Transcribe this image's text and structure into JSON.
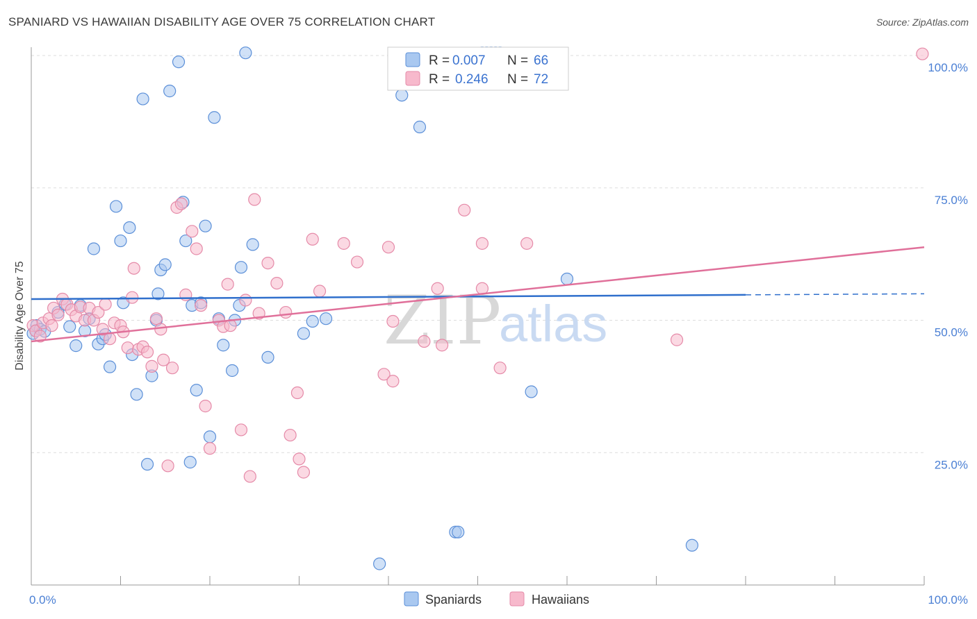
{
  "header": {
    "title": "SPANIARD VS HAWAIIAN DISABILITY AGE OVER 75 CORRELATION CHART",
    "source": "Source: ZipAtlas.com"
  },
  "watermark": {
    "zip": "ZIP",
    "atlas": "atlas"
  },
  "colors": {
    "spaniards_fill": "#a9c8f0",
    "spaniards_stroke": "#5b8fd8",
    "spaniards_line": "#2f6fcc",
    "hawaiians_fill": "#f7b9cc",
    "hawaiians_stroke": "#e58aa8",
    "hawaiians_line": "#e0709a",
    "tick_label": "#4a7fd4",
    "grid": "#dddddd"
  },
  "legend": {
    "rows": [
      {
        "r_label": "R =",
        "r_value": "0.007",
        "n_label": "N =",
        "n_value": "66"
      },
      {
        "r_label": "R =",
        "r_value": "0.246",
        "n_label": "N =",
        "n_value": "72"
      }
    ]
  },
  "chart_data": {
    "type": "scatter",
    "title": "SPANIARD VS HAWAIIAN DISABILITY AGE OVER 75 CORRELATION CHART",
    "xlabel": "",
    "ylabel": "Disability Age Over 75",
    "xlim": [
      0,
      100
    ],
    "ylim": [
      0,
      100
    ],
    "x_tick_labels": [
      "0.0%",
      "100.0%"
    ],
    "y_ticks": [
      25,
      50,
      75,
      100
    ],
    "y_tick_labels": [
      "25.0%",
      "50.0%",
      "75.0%",
      "100.0%"
    ],
    "grid": true,
    "legend_labels": [
      "Spaniards",
      "Hawaiians"
    ],
    "series": [
      {
        "name": "Spaniards",
        "trend": {
          "x0": 0,
          "y0": 54.0,
          "x1": 80,
          "y1": 54.8,
          "dashed_to_x": 100,
          "dashed_to_y": 55.0
        },
        "points": [
          [
            0.2,
            47.5
          ],
          [
            0.5,
            48.0
          ],
          [
            0.6,
            49.0
          ],
          [
            1.0,
            48.3
          ],
          [
            1.5,
            47.9
          ],
          [
            3.0,
            51.5
          ],
          [
            3.8,
            53.0
          ],
          [
            4.3,
            48.8
          ],
          [
            5.0,
            45.2
          ],
          [
            5.5,
            52.8
          ],
          [
            6.0,
            48.0
          ],
          [
            6.5,
            50.3
          ],
          [
            7.0,
            63.5
          ],
          [
            7.5,
            45.5
          ],
          [
            8.0,
            46.5
          ],
          [
            8.3,
            47.3
          ],
          [
            8.8,
            41.2
          ],
          [
            9.5,
            71.5
          ],
          [
            10.0,
            65.0
          ],
          [
            10.3,
            53.3
          ],
          [
            11.0,
            67.5
          ],
          [
            11.3,
            43.5
          ],
          [
            11.8,
            36.0
          ],
          [
            12.5,
            91.8
          ],
          [
            13.0,
            22.8
          ],
          [
            13.5,
            39.5
          ],
          [
            14.0,
            50.0
          ],
          [
            14.2,
            55.0
          ],
          [
            14.5,
            59.5
          ],
          [
            15.0,
            60.5
          ],
          [
            15.5,
            93.3
          ],
          [
            16.5,
            98.8
          ],
          [
            17.0,
            72.3
          ],
          [
            17.3,
            65.0
          ],
          [
            17.8,
            23.2
          ],
          [
            18.0,
            52.8
          ],
          [
            18.5,
            36.8
          ],
          [
            19.0,
            53.3
          ],
          [
            19.5,
            67.8
          ],
          [
            20.0,
            28.0
          ],
          [
            20.5,
            88.3
          ],
          [
            21.0,
            50.3
          ],
          [
            21.5,
            45.3
          ],
          [
            22.5,
            40.5
          ],
          [
            22.8,
            50.0
          ],
          [
            23.3,
            52.8
          ],
          [
            23.5,
            60.0
          ],
          [
            24.0,
            100.5
          ],
          [
            24.8,
            64.3
          ],
          [
            26.5,
            43.0
          ],
          [
            30.5,
            47.5
          ],
          [
            31.5,
            49.8
          ],
          [
            33.0,
            50.3
          ],
          [
            39.0,
            4.0
          ],
          [
            41.5,
            92.5
          ],
          [
            43.5,
            86.5
          ],
          [
            47.5,
            10.0
          ],
          [
            47.8,
            10.0
          ],
          [
            50.5,
            100.5
          ],
          [
            51.0,
            100.5
          ],
          [
            51.5,
            100.5
          ],
          [
            52.0,
            100.5
          ],
          [
            52.5,
            100.5
          ],
          [
            56.0,
            36.5
          ],
          [
            60.0,
            57.8
          ],
          [
            74.0,
            7.5
          ]
        ]
      },
      {
        "name": "Hawaiians",
        "trend": {
          "x0": 0,
          "y0": 46.0,
          "x1": 100,
          "y1": 63.8
        },
        "points": [
          [
            0.2,
            49.0
          ],
          [
            0.5,
            48.0
          ],
          [
            1.0,
            47.0
          ],
          [
            1.3,
            49.5
          ],
          [
            2.0,
            50.3
          ],
          [
            2.3,
            49.0
          ],
          [
            2.5,
            52.3
          ],
          [
            3.0,
            51.0
          ],
          [
            3.5,
            54.0
          ],
          [
            4.0,
            53.0
          ],
          [
            4.5,
            52.0
          ],
          [
            5.0,
            50.8
          ],
          [
            5.5,
            52.5
          ],
          [
            6.0,
            50.0
          ],
          [
            6.5,
            52.3
          ],
          [
            7.0,
            50.0
          ],
          [
            7.5,
            51.5
          ],
          [
            8.0,
            48.3
          ],
          [
            8.3,
            53.0
          ],
          [
            8.8,
            46.5
          ],
          [
            9.3,
            49.5
          ],
          [
            10.0,
            49.0
          ],
          [
            10.3,
            47.8
          ],
          [
            10.8,
            44.8
          ],
          [
            11.3,
            54.3
          ],
          [
            11.5,
            59.8
          ],
          [
            12.0,
            44.5
          ],
          [
            12.5,
            45.0
          ],
          [
            13.0,
            44.0
          ],
          [
            13.5,
            41.3
          ],
          [
            14.0,
            50.3
          ],
          [
            14.5,
            48.3
          ],
          [
            14.8,
            42.5
          ],
          [
            15.3,
            22.5
          ],
          [
            15.8,
            41.0
          ],
          [
            16.3,
            71.3
          ],
          [
            16.8,
            72.0
          ],
          [
            17.3,
            54.8
          ],
          [
            18.0,
            66.8
          ],
          [
            18.5,
            63.5
          ],
          [
            19.0,
            52.8
          ],
          [
            19.5,
            33.8
          ],
          [
            20.0,
            25.8
          ],
          [
            21.0,
            50.0
          ],
          [
            21.5,
            48.8
          ],
          [
            22.0,
            56.8
          ],
          [
            22.3,
            49.0
          ],
          [
            23.5,
            29.3
          ],
          [
            24.0,
            53.8
          ],
          [
            24.5,
            20.5
          ],
          [
            25.0,
            72.8
          ],
          [
            25.5,
            51.3
          ],
          [
            26.5,
            60.8
          ],
          [
            27.5,
            57.0
          ],
          [
            28.5,
            51.5
          ],
          [
            29.0,
            28.3
          ],
          [
            29.8,
            36.3
          ],
          [
            30.0,
            23.8
          ],
          [
            30.5,
            21.3
          ],
          [
            31.5,
            65.3
          ],
          [
            32.3,
            55.5
          ],
          [
            35.0,
            64.5
          ],
          [
            36.5,
            61.0
          ],
          [
            39.5,
            39.8
          ],
          [
            40.0,
            63.8
          ],
          [
            40.5,
            38.5
          ],
          [
            44.0,
            46.0
          ],
          [
            45.5,
            56.0
          ],
          [
            48.5,
            70.8
          ],
          [
            50.5,
            64.5
          ],
          [
            52.5,
            41.0
          ],
          [
            72.3,
            46.3
          ]
        ]
      }
    ]
  },
  "extra_points": {
    "hawaiians_far": [
      [
        99.8,
        100.3
      ],
      [
        40.5,
        49.8
      ],
      [
        46.0,
        45.3
      ],
      [
        55.5,
        64.5
      ],
      [
        50.5,
        56.0
      ]
    ]
  }
}
